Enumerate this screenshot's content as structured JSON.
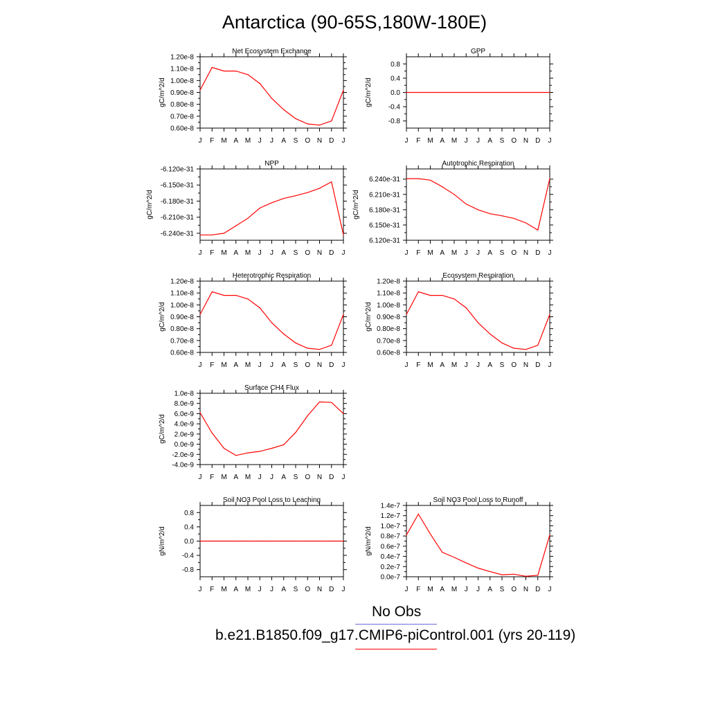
{
  "figure": {
    "title": "Antarctica (90-65S,180W-180E)",
    "line_color": "#ff0000",
    "obs_color": "#6b6bd8"
  },
  "legend": {
    "obs_label": "No Obs",
    "model_label": "b.e21.B1850.f09_g17.CMIP6-piControl.001 (yrs 20-119)"
  },
  "chart_data": [
    {
      "type": "line",
      "title": "Net Ecosystem Exchange",
      "ylabel": "gC/m^2/d",
      "categories": [
        "J",
        "F",
        "M",
        "A",
        "M",
        "J",
        "J",
        "A",
        "S",
        "O",
        "N",
        "D",
        "J"
      ],
      "ylim": [
        6e-09,
        1.2e-08
      ],
      "yticks": [
        6e-09,
        7e-09,
        8e-09,
        9e-09,
        1e-08,
        1.1e-08,
        1.2e-08
      ],
      "ytick_labels": [
        "0.60e-8",
        "0.70e-8",
        "0.80e-8",
        "0.90e-8",
        "1.00e-8",
        "1.10e-8",
        "1.20e-8"
      ],
      "values": [
        9.2e-09,
        1.11e-08,
        1.08e-08,
        1.08e-08,
        1.05e-08,
        9.75e-09,
        8.5e-09,
        7.55e-09,
        6.8e-09,
        6.35e-09,
        6.25e-09,
        6.6e-09,
        9.2e-09
      ]
    },
    {
      "type": "line",
      "title": "GPP",
      "ylabel": "gC/m^2/d",
      "categories": [
        "J",
        "F",
        "M",
        "A",
        "M",
        "J",
        "J",
        "A",
        "S",
        "O",
        "N",
        "D",
        "J"
      ],
      "ylim": [
        -1.0,
        1.0
      ],
      "yticks": [
        -0.8,
        -0.4,
        0.0,
        0.4,
        0.8
      ],
      "ytick_labels": [
        "-0.8",
        "-0.4",
        "0.0",
        "0.4",
        "0.8"
      ],
      "values": [
        0,
        0,
        0,
        0,
        0,
        0,
        0,
        0,
        0,
        0,
        0,
        0,
        0
      ]
    },
    {
      "type": "line",
      "title": "NPP",
      "ylabel": "gC/m^2/d",
      "categories": [
        "J",
        "F",
        "M",
        "A",
        "M",
        "J",
        "J",
        "A",
        "S",
        "O",
        "N",
        "D",
        "J"
      ],
      "ylim": [
        -6.253e-31,
        -6.12e-31
      ],
      "yticks": [
        -6.24e-31,
        -6.21e-31,
        -6.18e-31,
        -6.15e-31,
        -6.12e-31
      ],
      "ytick_labels": [
        "-6.240e-31",
        "-6.210e-31",
        "-6.180e-31",
        "-6.150e-31",
        "-6.120e-31"
      ],
      "values": [
        -6.243e-31,
        -6.243e-31,
        -6.24e-31,
        -6.226e-31,
        -6.212e-31,
        -6.193e-31,
        -6.183e-31,
        -6.175e-31,
        -6.17e-31,
        -6.164e-31,
        -6.156e-31,
        -6.144e-31,
        -6.243e-31
      ]
    },
    {
      "type": "line",
      "title": "Autotrophic Respiration",
      "ylabel": "gC/m^2/d",
      "categories": [
        "J",
        "F",
        "M",
        "A",
        "M",
        "J",
        "J",
        "A",
        "S",
        "O",
        "N",
        "D",
        "J"
      ],
      "ylim": [
        6.12e-31,
        6.26e-31
      ],
      "yticks": [
        6.12e-31,
        6.15e-31,
        6.18e-31,
        6.21e-31,
        6.24e-31
      ],
      "ytick_labels": [
        "6.120e-31",
        "6.150e-31",
        "6.180e-31",
        "6.210e-31",
        "6.240e-31"
      ],
      "values": [
        6.241e-31,
        6.241e-31,
        6.238e-31,
        6.225e-31,
        6.21e-31,
        6.191e-31,
        6.18e-31,
        6.172e-31,
        6.168e-31,
        6.163e-31,
        6.154e-31,
        6.14e-31,
        6.241e-31
      ]
    },
    {
      "type": "line",
      "title": "Heterotrophic Respiration",
      "ylabel": "gC/m^2/d",
      "categories": [
        "J",
        "F",
        "M",
        "A",
        "M",
        "J",
        "J",
        "A",
        "S",
        "O",
        "N",
        "D",
        "J"
      ],
      "ylim": [
        6e-09,
        1.2e-08
      ],
      "yticks": [
        6e-09,
        7e-09,
        8e-09,
        9e-09,
        1e-08,
        1.1e-08,
        1.2e-08
      ],
      "ytick_labels": [
        "0.60e-8",
        "0.70e-8",
        "0.80e-8",
        "0.90e-8",
        "1.00e-8",
        "1.10e-8",
        "1.20e-8"
      ],
      "values": [
        9.2e-09,
        1.11e-08,
        1.08e-08,
        1.08e-08,
        1.05e-08,
        9.75e-09,
        8.5e-09,
        7.55e-09,
        6.8e-09,
        6.35e-09,
        6.25e-09,
        6.6e-09,
        9.2e-09
      ]
    },
    {
      "type": "line",
      "title": "Ecosystem Respiration",
      "ylabel": "gC/m^2/d",
      "categories": [
        "J",
        "F",
        "M",
        "A",
        "M",
        "J",
        "J",
        "A",
        "S",
        "O",
        "N",
        "D",
        "J"
      ],
      "ylim": [
        6e-09,
        1.2e-08
      ],
      "yticks": [
        6e-09,
        7e-09,
        8e-09,
        9e-09,
        1e-08,
        1.1e-08,
        1.2e-08
      ],
      "ytick_labels": [
        "0.60e-8",
        "0.70e-8",
        "0.80e-8",
        "0.90e-8",
        "1.00e-8",
        "1.10e-8",
        "1.20e-8"
      ],
      "values": [
        9.2e-09,
        1.11e-08,
        1.08e-08,
        1.08e-08,
        1.05e-08,
        9.75e-09,
        8.5e-09,
        7.55e-09,
        6.8e-09,
        6.35e-09,
        6.25e-09,
        6.6e-09,
        9.2e-09
      ]
    },
    {
      "type": "line",
      "title": "Surface CH4 Flux",
      "ylabel": "gC/m^2/d",
      "categories": [
        "J",
        "F",
        "M",
        "A",
        "M",
        "J",
        "J",
        "A",
        "S",
        "O",
        "N",
        "D",
        "J"
      ],
      "ylim": [
        -4e-09,
        1e-08
      ],
      "yticks": [
        -4e-09,
        -2e-09,
        0,
        2e-09,
        4e-09,
        6e-09,
        8e-09,
        1e-08
      ],
      "ytick_labels": [
        "-4.0e-9",
        "-2.0e-9",
        "0.0e-9",
        "2.0e-9",
        "4.0e-9",
        "6.0e-9",
        "8.0e-9",
        "1.0e-8"
      ],
      "values": [
        6.2e-09,
        2.2e-09,
        -8e-10,
        -2.2e-09,
        -1.7e-09,
        -1.4e-09,
        -8e-10,
        -1e-10,
        2.3e-09,
        5.6e-09,
        8.3e-09,
        8.2e-09,
        6e-09
      ]
    },
    {
      "type": "line",
      "title": "Soil NO3 Pool Loss to Leaching",
      "ylabel": "gN/m^2/d",
      "categories": [
        "J",
        "F",
        "M",
        "A",
        "M",
        "J",
        "J",
        "A",
        "S",
        "O",
        "N",
        "D",
        "J"
      ],
      "ylim": [
        -1.0,
        1.0
      ],
      "yticks": [
        -0.8,
        -0.4,
        0.0,
        0.4,
        0.8
      ],
      "ytick_labels": [
        "-0.8",
        "-0.4",
        "0.0",
        "0.4",
        "0.8"
      ],
      "values": [
        0,
        0,
        0,
        0,
        0,
        0,
        0,
        0,
        0,
        0,
        0,
        0,
        0
      ]
    },
    {
      "type": "line",
      "title": "Soil NO3 Pool Loss to Runoff",
      "ylabel": "gN/m^2/d",
      "categories": [
        "J",
        "F",
        "M",
        "A",
        "M",
        "J",
        "J",
        "A",
        "S",
        "O",
        "N",
        "D",
        "J"
      ],
      "ylim": [
        0.0,
        1.4e-07
      ],
      "yticks": [
        0,
        2e-08,
        4e-08,
        6e-08,
        8e-08,
        1e-07,
        1.2e-07,
        1.4e-07
      ],
      "ytick_labels": [
        "0.0e-7",
        "0.2e-7",
        "0.4e-7",
        "0.6e-7",
        "0.8e-7",
        "1.0e-7",
        "1.2e-7",
        "1.4e-7"
      ],
      "values": [
        8.2e-08,
        1.23e-07,
        8.4e-08,
        4.8e-08,
        3.8e-08,
        2.7e-08,
        1.7e-08,
        1e-08,
        4e-09,
        5e-09,
        1e-09,
        3e-09,
        8.2e-08
      ]
    }
  ]
}
